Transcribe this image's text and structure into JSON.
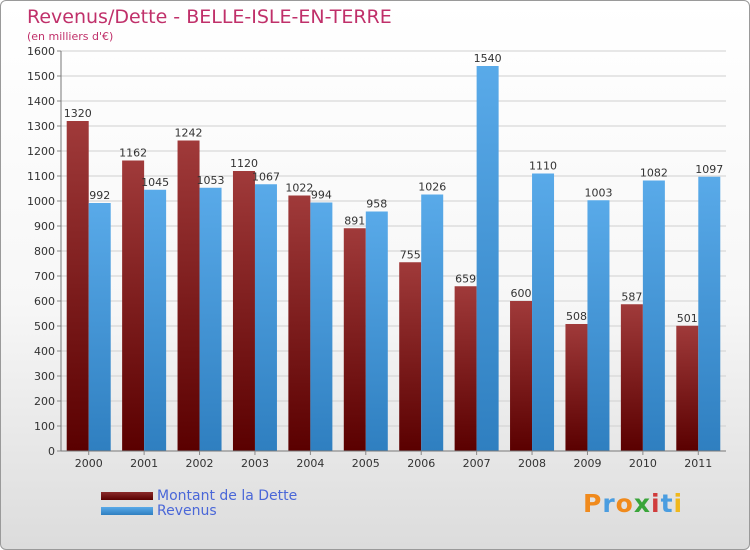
{
  "chart_data": {
    "type": "bar",
    "title": "Revenus/Dette - BELLE-ISLE-EN-TERRE",
    "subtitle": "(en milliers d'€)",
    "categories": [
      "2000",
      "2001",
      "2002",
      "2003",
      "2004",
      "2005",
      "2006",
      "2007",
      "2008",
      "2009",
      "2010",
      "2011"
    ],
    "series": [
      {
        "name": "Montant de la Dette",
        "color": "#6b0c0c",
        "values": [
          1320,
          1162,
          1242,
          1120,
          1022,
          891,
          755,
          659,
          600,
          508,
          587,
          501
        ]
      },
      {
        "name": "Revenus",
        "color": "#3a93d8",
        "values": [
          992,
          1045,
          1053,
          1067,
          994,
          958,
          1026,
          1540,
          1110,
          1003,
          1082,
          1097
        ]
      }
    ],
    "ylim": [
      0,
      1600
    ],
    "yticks": [
      0,
      100,
      200,
      300,
      400,
      500,
      600,
      700,
      800,
      900,
      1000,
      1100,
      1200,
      1300,
      1400,
      1500,
      1600
    ],
    "grid": true,
    "legend": "bottom-left"
  },
  "logo": {
    "text": "Proxiti",
    "colors": [
      "#f08a1c",
      "#4a9de0",
      "#f08a1c",
      "#3aa53a",
      "#d03c3c",
      "#4a9de0",
      "#f0b81c"
    ]
  }
}
